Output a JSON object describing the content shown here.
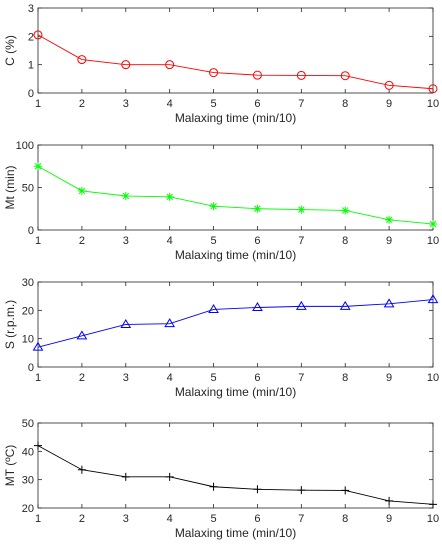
{
  "chart_data": [
    {
      "type": "line",
      "xlabel": "Malaxing time (min/10)",
      "ylabel": "C (%)",
      "x": [
        1,
        2,
        3,
        4,
        5,
        6,
        7,
        8,
        9,
        10
      ],
      "xlim": [
        1,
        10
      ],
      "ylim": [
        0,
        3
      ],
      "xticks": [
        1,
        2,
        3,
        4,
        5,
        6,
        7,
        8,
        9,
        10
      ],
      "yticks": [
        0,
        1,
        2,
        3
      ],
      "grid": false,
      "series": [
        {
          "values": [
            2.05,
            1.18,
            1.0,
            1.0,
            0.72,
            0.63,
            0.62,
            0.61,
            0.27,
            0.15
          ],
          "color": "#ff0000",
          "marker": "circle"
        }
      ]
    },
    {
      "type": "line",
      "xlabel": "Malaxing time (min/10)",
      "ylabel": "Mt (min)",
      "x": [
        1,
        2,
        3,
        4,
        5,
        6,
        7,
        8,
        9,
        10
      ],
      "xlim": [
        1,
        10
      ],
      "ylim": [
        0,
        100
      ],
      "xticks": [
        1,
        2,
        3,
        4,
        5,
        6,
        7,
        8,
        9,
        10
      ],
      "yticks": [
        0,
        50,
        100
      ],
      "grid": false,
      "series": [
        {
          "values": [
            75,
            46,
            40,
            39,
            28,
            25,
            24,
            23,
            12,
            7
          ],
          "color": "#00ff00",
          "marker": "asterisk"
        }
      ]
    },
    {
      "type": "line",
      "xlabel": "Malaxing time (min/10)",
      "ylabel": "S (r.p.m.)",
      "x": [
        1,
        2,
        3,
        4,
        5,
        6,
        7,
        8,
        9,
        10
      ],
      "xlim": [
        1,
        10
      ],
      "ylim": [
        0,
        30
      ],
      "xticks": [
        1,
        2,
        3,
        4,
        5,
        6,
        7,
        8,
        9,
        10
      ],
      "yticks": [
        0,
        10,
        20,
        30
      ],
      "grid": false,
      "series": [
        {
          "values": [
            7,
            11,
            15,
            15.3,
            20.3,
            21,
            21.4,
            21.4,
            22.3,
            23.8
          ],
          "color": "#0000ff",
          "marker": "triangle"
        }
      ]
    },
    {
      "type": "line",
      "xlabel": "Malaxing time (min/10)",
      "ylabel": "MT (ºC)",
      "x": [
        1,
        2,
        3,
        4,
        5,
        6,
        7,
        8,
        9,
        10
      ],
      "xlim": [
        1,
        10
      ],
      "ylim": [
        20,
        50
      ],
      "xticks": [
        1,
        2,
        3,
        4,
        5,
        6,
        7,
        8,
        9,
        10
      ],
      "yticks": [
        20,
        30,
        40,
        50
      ],
      "grid": false,
      "series": [
        {
          "values": [
            42,
            33.5,
            31,
            31,
            27.5,
            26.6,
            26.3,
            26.2,
            22.5,
            21.3
          ],
          "color": "#000000",
          "marker": "plus"
        }
      ]
    }
  ]
}
